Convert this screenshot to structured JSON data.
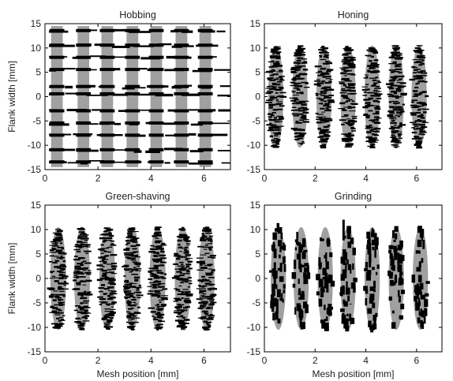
{
  "chart_data": [
    {
      "type": "scatter",
      "title": "Hobbing",
      "xlabel": "",
      "ylabel": "Flank width [mm]",
      "xlim": [
        0,
        7
      ],
      "ylim": [
        -15,
        15
      ],
      "xticks": [
        "0",
        "2",
        "4",
        "6"
      ],
      "yticks": [
        "15",
        "10",
        "5",
        "0",
        "-5",
        "-10",
        "-15"
      ],
      "teeth_x": [
        0.45,
        1.45,
        2.35,
        3.3,
        4.2,
        5.15,
        6.05
      ],
      "band_half_width_mm": 0.22,
      "band_y_range": [
        -14.5,
        14.5
      ],
      "contact_rows_y": [
        13.5,
        10.5,
        8.0,
        5.5,
        2.0,
        0.5,
        -3.0,
        -5.5,
        -8.0,
        -11.0,
        -13.5
      ],
      "gray_color": "#a0a0a0",
      "mark_color": "#000000"
    },
    {
      "type": "scatter",
      "title": "Honing",
      "xlabel": "",
      "ylabel": "",
      "xlim": [
        0,
        7
      ],
      "ylim": [
        -15,
        15
      ],
      "xticks": [
        "0",
        "2",
        "4",
        "6"
      ],
      "yticks": [
        "15",
        "10",
        "5",
        "0",
        "-5",
        "-10",
        "-15"
      ],
      "teeth_x": [
        0.45,
        1.4,
        2.35,
        3.3,
        4.25,
        5.2,
        6.1
      ],
      "ellipse_half_width_mm": 0.3,
      "ellipse_y_range": [
        -10.5,
        10.5
      ],
      "gray_color": "#a0a0a0",
      "mark_color": "#000000"
    },
    {
      "type": "scatter",
      "title": "Green-shaving",
      "xlabel": "Mesh position [mm]",
      "ylabel": "Flank width [mm]",
      "xlim": [
        0,
        7
      ],
      "ylim": [
        -15,
        15
      ],
      "xticks": [
        "0",
        "2",
        "4",
        "6"
      ],
      "yticks": [
        "15",
        "10",
        "5",
        "0",
        "-5",
        "-10",
        "-15"
      ],
      "teeth_x": [
        0.5,
        1.4,
        2.35,
        3.3,
        4.25,
        5.2,
        6.1
      ],
      "ellipse_half_width_mm": 0.3,
      "ellipse_y_range": [
        -10.5,
        10.5
      ],
      "gray_color": "#a0a0a0",
      "mark_color": "#000000"
    },
    {
      "type": "scatter",
      "title": "Grinding",
      "xlabel": "Mesh position [mm]",
      "ylabel": "",
      "xlim": [
        0,
        7
      ],
      "ylim": [
        -15,
        15
      ],
      "xticks": [
        "0",
        "2",
        "4",
        "6"
      ],
      "yticks": [
        "15",
        "10",
        "5",
        "0",
        "-5",
        "-10",
        "-15"
      ],
      "teeth_x": [
        0.55,
        1.45,
        2.4,
        3.3,
        4.25,
        5.2,
        6.15
      ],
      "ellipse_half_width_mm": 0.3,
      "ellipse_y_range": [
        -10.5,
        10.5
      ],
      "gray_color": "#a0a0a0",
      "mark_color": "#000000"
    }
  ]
}
